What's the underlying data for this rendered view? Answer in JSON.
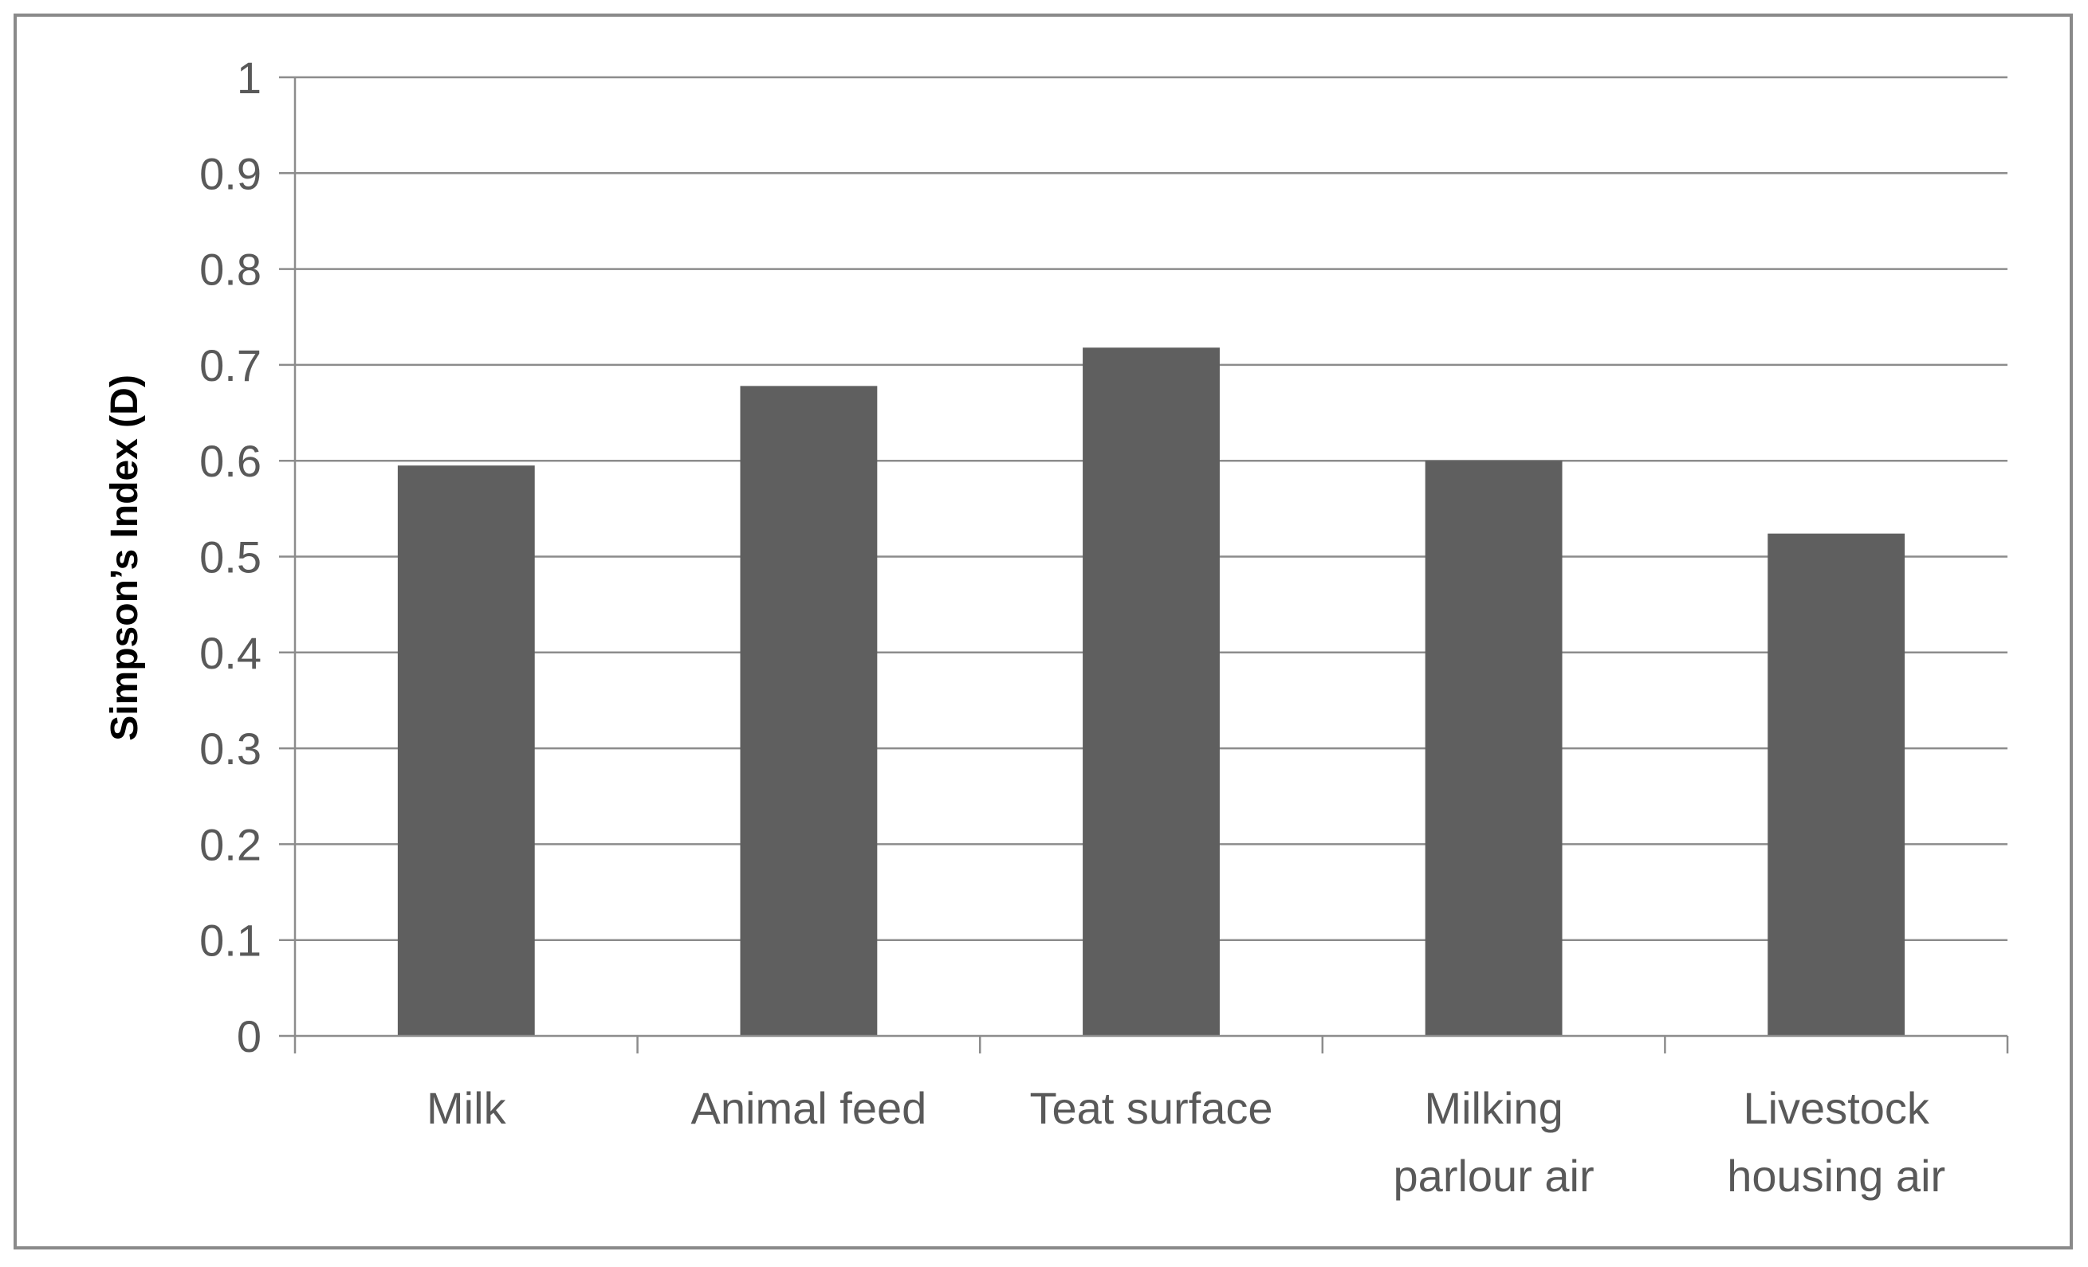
{
  "chart_data": {
    "type": "bar",
    "title": "",
    "xlabel": "",
    "ylabel": "Simpson’s Index (D)",
    "categories": [
      [
        "Milk"
      ],
      [
        "Animal feed"
      ],
      [
        "Teat surface"
      ],
      [
        "Milking",
        "parlour air"
      ],
      [
        "Livestock",
        "housing air"
      ]
    ],
    "values": [
      0.595,
      0.678,
      0.718,
      0.6,
      0.524
    ],
    "ylim": [
      0,
      1
    ],
    "yticks": [
      "0",
      "0.1",
      "0.2",
      "0.3",
      "0.4",
      "0.5",
      "0.6",
      "0.7",
      "0.8",
      "0.9",
      "1"
    ],
    "grid": true,
    "legend": "none",
    "colors": {
      "bar": "#5f5f5f",
      "grid": "#8c8c8c",
      "frame": "#8a8a8a",
      "tick_text": "#595959"
    }
  }
}
